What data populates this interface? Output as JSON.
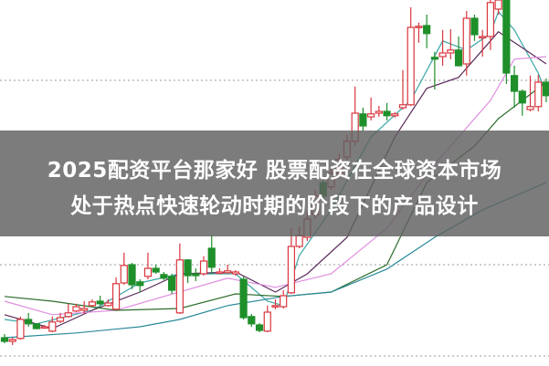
{
  "headline": {
    "line1": "2025配资平台那家好 股票配资在全球资本市场",
    "line2": "处于热点快速轮动时期的阶段下的产品设计"
  },
  "chart_data": {
    "type": "candlestick",
    "title": "",
    "xlabel": "",
    "ylabel": "",
    "ylim": [
      0,
      100
    ],
    "grid": "dotted horizontal",
    "colors": {
      "up": "#d9363e",
      "down": "#1f8f2a",
      "ma5": "#3aa6a6",
      "ma10": "#5a2a5a",
      "ma20": "#e08ee0",
      "ma30": "#2d6e2d",
      "ma60": "#2a8a9a"
    },
    "candles_ohlc_note_order": "open,close,high,low",
    "candles": [
      [
        7.5,
        6.5,
        8.5,
        6
      ],
      [
        6.5,
        7,
        7.5,
        5.5
      ],
      [
        7.3,
        12.5,
        13.3,
        7
      ],
      [
        12.5,
        11.3,
        14.3,
        10.5
      ],
      [
        11.3,
        10,
        11.5,
        9.8
      ],
      [
        10.3,
        10.5,
        11,
        10
      ],
      [
        9.3,
        11.8,
        13.3,
        9
      ],
      [
        12,
        13,
        14.3,
        11.5
      ],
      [
        13.3,
        14.3,
        16.8,
        13
      ],
      [
        14.8,
        16,
        16.8,
        14.5
      ],
      [
        15,
        15.5,
        17.5,
        14
      ],
      [
        16.3,
        17.3,
        18,
        16
      ],
      [
        17.5,
        16.8,
        19,
        16.3
      ],
      [
        16.3,
        17,
        18,
        16
      ],
      [
        15.3,
        22.3,
        24,
        15
      ],
      [
        22.5,
        27.3,
        30.8,
        22
      ],
      [
        27.5,
        22,
        28,
        20.8
      ],
      [
        22.8,
        21.8,
        23.5,
        20
      ],
      [
        24.3,
        26.5,
        30.8,
        23.5
      ],
      [
        26.5,
        25.5,
        27.5,
        25
      ],
      [
        24.8,
        23.8,
        25.5,
        23.3
      ],
      [
        24.3,
        20.5,
        25,
        19.5
      ],
      [
        14.3,
        28.8,
        33.3,
        14
      ],
      [
        28.8,
        24.5,
        29,
        22.5
      ],
      [
        25,
        24.5,
        26.5,
        23
      ],
      [
        25,
        28.5,
        29.8,
        24.5
      ],
      [
        32,
        26.8,
        35.5,
        25
      ],
      [
        25.5,
        25.5,
        26.5,
        25
      ],
      [
        25.3,
        25.8,
        27.5,
        25
      ],
      [
        25,
        25.5,
        26,
        24.5
      ],
      [
        23.5,
        13,
        24.3,
        12.5
      ],
      [
        13.3,
        11.3,
        14,
        10.5
      ],
      [
        11,
        9.5,
        11.5,
        9
      ],
      [
        9.3,
        14.5,
        16.3,
        9
      ],
      [
        16.3,
        16.3,
        18,
        15.3
      ],
      [
        16,
        19,
        20.5,
        15.5
      ],
      [
        19.8,
        32.5,
        37.5,
        19.5
      ],
      [
        32.5,
        35.5,
        38,
        32
      ],
      [
        35,
        40,
        42,
        34
      ],
      [
        41.3,
        46.3,
        48,
        40
      ],
      [
        50,
        46.3,
        51,
        45
      ],
      [
        48.8,
        52.5,
        54,
        48
      ],
      [
        52.5,
        56.3,
        58,
        51
      ],
      [
        57,
        61.3,
        63,
        56
      ],
      [
        61.3,
        69,
        76.3,
        60
      ],
      [
        68.8,
        65.5,
        70.5,
        64
      ],
      [
        68,
        68.8,
        73.3,
        67
      ],
      [
        69,
        69.5,
        71,
        68
      ],
      [
        69.5,
        68.3,
        71.8,
        67
      ],
      [
        68.3,
        68.8,
        69.3,
        67.8
      ],
      [
        70.5,
        71.3,
        80.8,
        70
      ],
      [
        71.3,
        92.5,
        98,
        71
      ],
      [
        92.5,
        92.8,
        93.8,
        88.3
      ],
      [
        93,
        90.8,
        96,
        86.8
      ],
      [
        84.3,
        83.8,
        85.8,
        75.5
      ],
      [
        84.5,
        85.5,
        91.8,
        82
      ],
      [
        85.5,
        86.3,
        92,
        83.8
      ],
      [
        86.3,
        82,
        90,
        81.8
      ],
      [
        82.5,
        95,
        97,
        79.3
      ],
      [
        95,
        90.5,
        96,
        88.8
      ],
      [
        90,
        90,
        91.8,
        84.5
      ],
      [
        90,
        99.3,
        100,
        86.3
      ],
      [
        97.5,
        100,
        100,
        96
      ],
      [
        100,
        80,
        100,
        77
      ],
      [
        79.3,
        75,
        82,
        70.5
      ],
      [
        75,
        71.8,
        75.5,
        68.3
      ],
      [
        70,
        70.8,
        79.3,
        69.5
      ],
      [
        70.8,
        77.5,
        79.5,
        69.5
      ],
      [
        77.5,
        73.8,
        78.5,
        72
      ]
    ],
    "moving_averages": [
      {
        "key": "ma5",
        "points": [
          [
            0,
            12.5
          ],
          [
            4,
            11.3
          ],
          [
            11,
            15
          ],
          [
            17,
            22.5
          ],
          [
            22,
            25
          ],
          [
            29,
            25
          ],
          [
            33,
            17.5
          ],
          [
            35,
            16.3
          ],
          [
            37,
            30
          ],
          [
            41,
            42.5
          ],
          [
            46,
            62.5
          ],
          [
            51,
            72.5
          ],
          [
            55,
            88.8
          ],
          [
            58,
            86.3
          ],
          [
            61,
            90.8
          ],
          [
            62,
            96.8
          ],
          [
            64,
            91.8
          ],
          [
            67,
            80
          ],
          [
            68,
            74.3
          ]
        ]
      },
      {
        "key": "ma10",
        "points": [
          [
            0,
            13.8
          ],
          [
            6,
            10
          ],
          [
            11,
            15
          ],
          [
            17,
            20
          ],
          [
            22,
            25
          ],
          [
            29,
            25.5
          ],
          [
            34,
            20
          ],
          [
            38,
            25
          ],
          [
            43,
            35
          ],
          [
            49,
            62.5
          ],
          [
            53,
            75.8
          ],
          [
            57,
            78.8
          ],
          [
            62,
            91.3
          ],
          [
            68,
            82.5
          ]
        ]
      },
      {
        "key": "ma20",
        "points": [
          [
            0,
            17.5
          ],
          [
            6,
            13.8
          ],
          [
            14,
            15
          ],
          [
            20,
            18.8
          ],
          [
            28,
            23.8
          ],
          [
            34,
            21.3
          ],
          [
            41,
            25
          ],
          [
            48,
            37.5
          ],
          [
            54,
            55
          ],
          [
            61,
            72.5
          ],
          [
            64,
            83.8
          ],
          [
            68,
            84.5
          ]
        ]
      },
      {
        "key": "ma30",
        "points": [
          [
            0,
            18.8
          ],
          [
            6,
            17.5
          ],
          [
            14,
            15
          ],
          [
            22,
            15.5
          ],
          [
            29,
            19.5
          ],
          [
            35,
            18.8
          ],
          [
            41,
            20
          ],
          [
            48,
            27.5
          ],
          [
            53,
            50
          ],
          [
            59,
            60
          ],
          [
            62,
            67.5
          ],
          [
            65,
            72.5
          ],
          [
            68,
            77.5
          ]
        ]
      },
      {
        "key": "ma60",
        "points": [
          [
            0,
            7.5
          ],
          [
            9,
            8.8
          ],
          [
            17,
            10.5
          ],
          [
            22,
            12.5
          ],
          [
            28,
            16.3
          ],
          [
            35,
            18.8
          ],
          [
            41,
            20
          ],
          [
            48,
            26.3
          ],
          [
            54,
            35
          ],
          [
            60,
            42.5
          ],
          [
            68,
            50
          ]
        ]
      }
    ],
    "gridlines": [
      78,
      27.5,
      2.5
    ]
  }
}
